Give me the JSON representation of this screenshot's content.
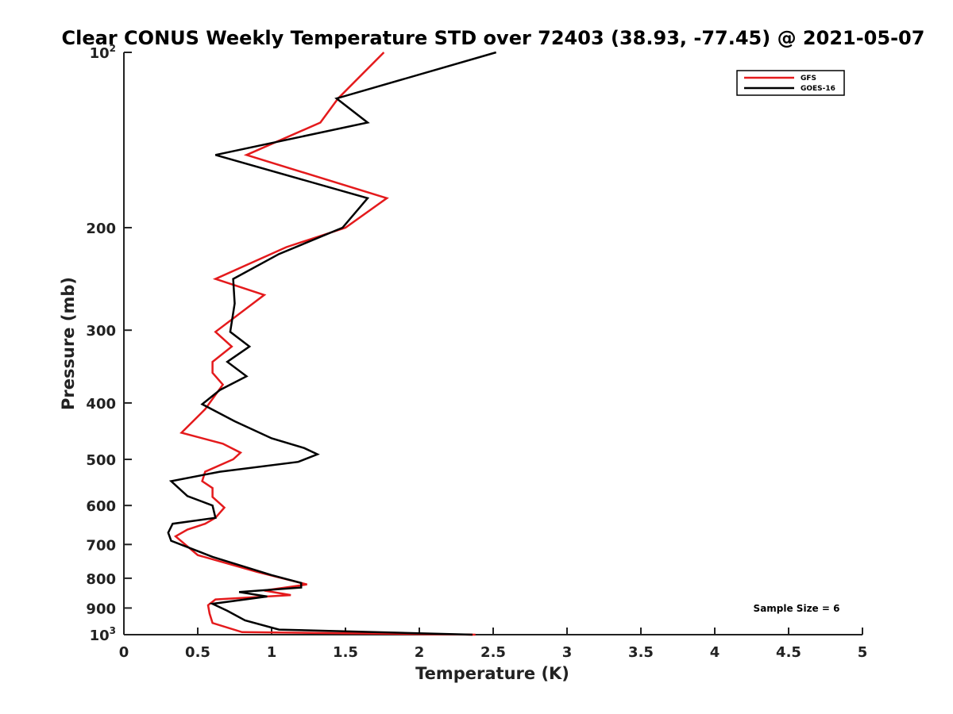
{
  "chart_data": {
    "type": "line",
    "title": "Clear CONUS Weekly Temperature STD over 72403 (38.93, -77.45) @ 2021-05-07",
    "xlabel": "Temperature (K)",
    "ylabel": "Pressure (mb)",
    "xlim": [
      0,
      5
    ],
    "ylim": [
      100,
      1000
    ],
    "y_scale": "log",
    "y_reversed": true,
    "x_ticks": [
      0,
      0.5,
      1,
      1.5,
      2,
      2.5,
      3,
      3.5,
      4,
      4.5,
      5
    ],
    "x_tick_labels": [
      "0",
      "0.5",
      "1",
      "1.5",
      "2",
      "2.5",
      "3",
      "3.5",
      "4",
      "4.5",
      "5"
    ],
    "y_ticks": [
      {
        "value": 100,
        "base": "10",
        "exp": "2",
        "label": ""
      },
      {
        "value": 200,
        "label": "200"
      },
      {
        "value": 300,
        "label": "300"
      },
      {
        "value": 400,
        "label": "400"
      },
      {
        "value": 500,
        "label": "500"
      },
      {
        "value": 600,
        "label": "600"
      },
      {
        "value": 700,
        "label": "700"
      },
      {
        "value": 800,
        "label": "800"
      },
      {
        "value": 900,
        "label": "900"
      },
      {
        "value": 1000,
        "base": "10",
        "exp": "3",
        "label": ""
      }
    ],
    "grid": false,
    "legend_position": "top-right",
    "series": [
      {
        "name": "GFS",
        "color": "#e41a1c",
        "points": [
          [
            1.76,
            100
          ],
          [
            1.45,
            120
          ],
          [
            1.33,
            132
          ],
          [
            0.83,
            150
          ],
          [
            1.78,
            178
          ],
          [
            1.5,
            200
          ],
          [
            1.1,
            216
          ],
          [
            0.62,
            245
          ],
          [
            0.95,
            261
          ],
          [
            0.62,
            302
          ],
          [
            0.73,
            320
          ],
          [
            0.6,
            340
          ],
          [
            0.6,
            355
          ],
          [
            0.67,
            372
          ],
          [
            0.55,
            410
          ],
          [
            0.39,
            450
          ],
          [
            0.67,
            470
          ],
          [
            0.79,
            487
          ],
          [
            0.74,
            500
          ],
          [
            0.55,
            525
          ],
          [
            0.53,
            545
          ],
          [
            0.6,
            560
          ],
          [
            0.6,
            580
          ],
          [
            0.68,
            605
          ],
          [
            0.62,
            630
          ],
          [
            0.55,
            645
          ],
          [
            0.43,
            660
          ],
          [
            0.35,
            678
          ],
          [
            0.5,
            730
          ],
          [
            0.9,
            780
          ],
          [
            1.24,
            820
          ],
          [
            0.95,
            840
          ],
          [
            1.13,
            855
          ],
          [
            0.62,
            870
          ],
          [
            0.57,
            890
          ],
          [
            0.58,
            920
          ],
          [
            0.6,
            955
          ],
          [
            0.8,
            990
          ],
          [
            2.38,
            1000
          ]
        ]
      },
      {
        "name": "GOES-16",
        "color": "#000000",
        "points": [
          [
            2.52,
            100
          ],
          [
            1.44,
            120
          ],
          [
            1.65,
            132
          ],
          [
            0.62,
            150
          ],
          [
            1.65,
            178
          ],
          [
            1.48,
            200
          ],
          [
            1.05,
            222
          ],
          [
            0.74,
            245
          ],
          [
            0.75,
            270
          ],
          [
            0.72,
            302
          ],
          [
            0.85,
            320
          ],
          [
            0.7,
            340
          ],
          [
            0.83,
            360
          ],
          [
            0.65,
            380
          ],
          [
            0.53,
            402
          ],
          [
            0.75,
            430
          ],
          [
            1.0,
            460
          ],
          [
            1.22,
            478
          ],
          [
            1.31,
            490
          ],
          [
            1.18,
            505
          ],
          [
            0.65,
            525
          ],
          [
            0.32,
            545
          ],
          [
            0.43,
            578
          ],
          [
            0.6,
            600
          ],
          [
            0.62,
            630
          ],
          [
            0.33,
            645
          ],
          [
            0.3,
            668
          ],
          [
            0.32,
            690
          ],
          [
            0.6,
            735
          ],
          [
            1.0,
            790
          ],
          [
            1.2,
            815
          ],
          [
            1.2,
            830
          ],
          [
            0.78,
            845
          ],
          [
            0.97,
            860
          ],
          [
            0.6,
            885
          ],
          [
            0.7,
            910
          ],
          [
            0.82,
            945
          ],
          [
            1.05,
            980
          ],
          [
            2.36,
            1000
          ]
        ]
      }
    ],
    "annotations": [
      {
        "text": "Sample Size = 6",
        "position": "bottom-right"
      }
    ]
  }
}
